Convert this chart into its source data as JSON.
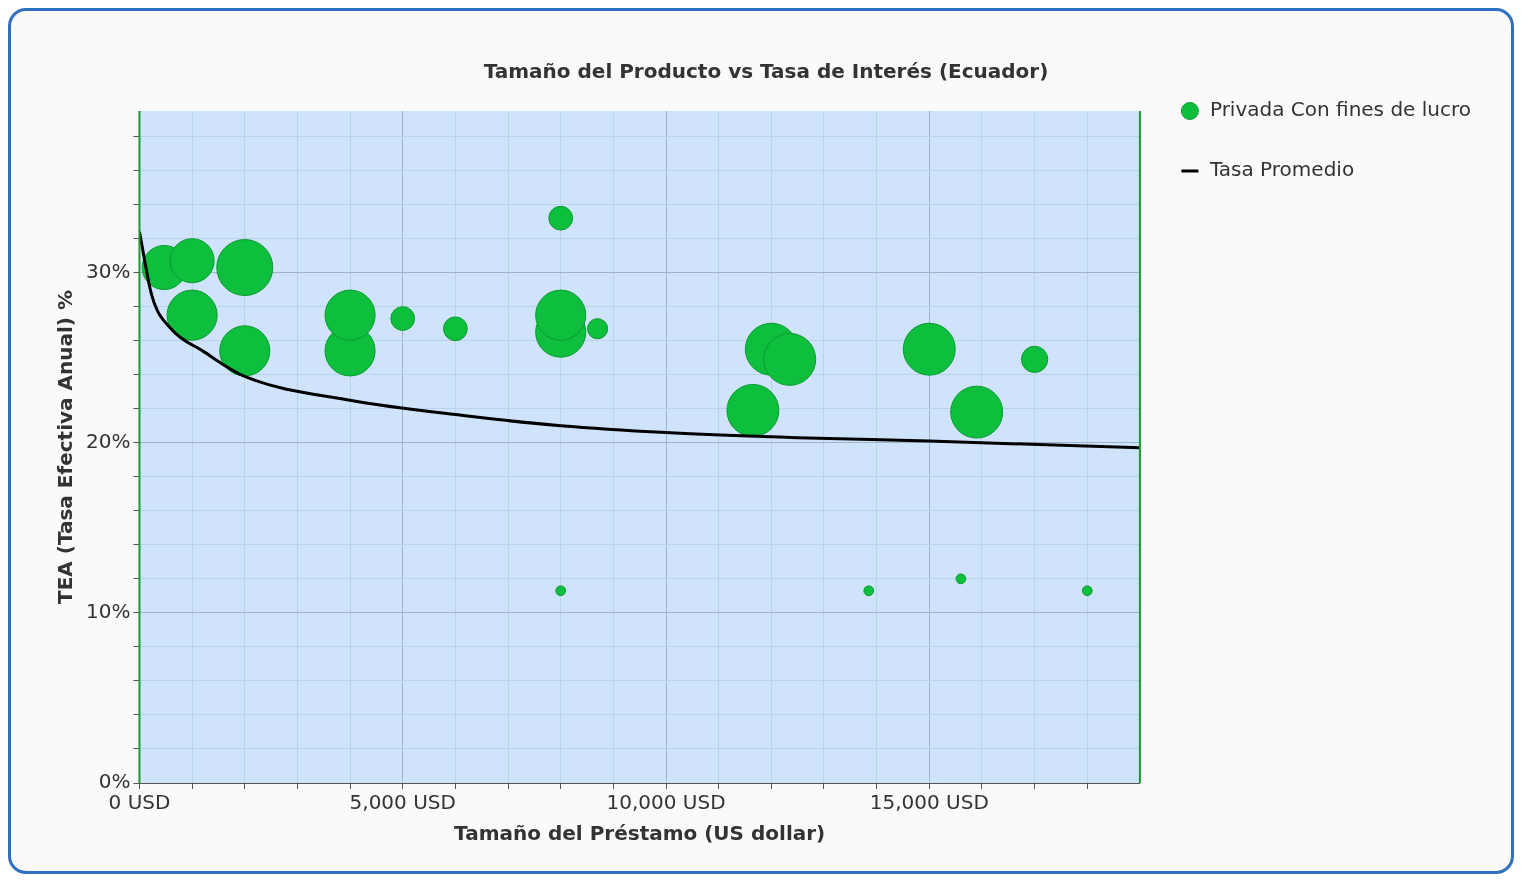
{
  "chart_data": {
    "type": "bubble",
    "title": "Tamaño del Producto vs Tasa de Interés (Ecuador)",
    "xlabel": "Tamaño del Préstamo (US dollar)",
    "ylabel": "TEA (Tasa Efectiva Anual) %",
    "xlim": [
      0,
      19000
    ],
    "ylim": [
      0,
      39.5
    ],
    "xticks": [
      {
        "value": 0,
        "label": "0 USD"
      },
      {
        "value": 1000,
        "label": null
      },
      {
        "value": 2000,
        "label": null
      },
      {
        "value": 3000,
        "label": null
      },
      {
        "value": 4000,
        "label": null
      },
      {
        "value": 5000,
        "label": "5,000 USD"
      },
      {
        "value": 6000,
        "label": null
      },
      {
        "value": 7000,
        "label": null
      },
      {
        "value": 8000,
        "label": null
      },
      {
        "value": 9000,
        "label": null
      },
      {
        "value": 10000,
        "label": "10,000 USD"
      },
      {
        "value": 11000,
        "label": null
      },
      {
        "value": 12000,
        "label": null
      },
      {
        "value": 13000,
        "label": null
      },
      {
        "value": 14000,
        "label": null
      },
      {
        "value": 15000,
        "label": "15,000 USD"
      },
      {
        "value": 16000,
        "label": null
      },
      {
        "value": 17000,
        "label": null
      },
      {
        "value": 18000,
        "label": null
      }
    ],
    "yticks": [
      {
        "value": 0,
        "label": "0%"
      },
      {
        "value": 2,
        "label": null
      },
      {
        "value": 4,
        "label": null
      },
      {
        "value": 6,
        "label": null
      },
      {
        "value": 8,
        "label": null
      },
      {
        "value": 10,
        "label": "10%"
      },
      {
        "value": 12,
        "label": null
      },
      {
        "value": 14,
        "label": null
      },
      {
        "value": 16,
        "label": null
      },
      {
        "value": 18,
        "label": null
      },
      {
        "value": 20,
        "label": "20%"
      },
      {
        "value": 22,
        "label": null
      },
      {
        "value": 24,
        "label": null
      },
      {
        "value": 26,
        "label": null
      },
      {
        "value": 28,
        "label": null
      },
      {
        "value": 30,
        "label": "30%"
      },
      {
        "value": 32,
        "label": null
      },
      {
        "value": 34,
        "label": null
      },
      {
        "value": 36,
        "label": null
      },
      {
        "value": 38,
        "label": null
      }
    ],
    "grid": true,
    "legend": "top right",
    "marker": "circle",
    "series": [
      {
        "name": "Privada Con fines de lucro",
        "type": "bubble",
        "color": "#0dbf3c",
        "x": [
          470,
          1000,
          2000,
          1000,
          2000,
          4000,
          4000,
          5000,
          6000,
          8000,
          8000,
          8000,
          8700,
          12000,
          12350,
          11650,
          15000,
          15900,
          17000,
          8000,
          13850,
          15600,
          18000
        ],
        "values": [
          30.3,
          30.7,
          30.3,
          27.5,
          25.4,
          25.4,
          27.5,
          27.3,
          26.7,
          33.2,
          26.5,
          27.5,
          26.7,
          25.5,
          24.9,
          21.9,
          25.5,
          21.8,
          24.9,
          11.3,
          11.3,
          12.0,
          11.3
        ],
        "sizes": [
          0.62,
          0.62,
          1,
          0.8,
          0.8,
          0.8,
          0.8,
          0.18,
          0.18,
          0.18,
          0.8,
          0.8,
          0.13,
          0.86,
          0.86,
          0.86,
          0.86,
          0.86,
          0.22,
          0.03,
          0.03,
          0.03,
          0.03
        ]
      },
      {
        "name": "Tasa Promedio",
        "type": "line",
        "color": "#000000",
        "marker": "none",
        "line_style": "solid",
        "x": [
          0,
          240,
          600,
          1200,
          2000,
          4000,
          6150,
          8000,
          10000,
          12500,
          15000,
          19000
        ],
        "values": [
          32.4,
          28.6,
          26.7,
          25.4,
          23.9,
          22.5,
          21.6,
          21.0,
          20.6,
          20.3,
          20.1,
          19.7
        ]
      }
    ]
  }
}
